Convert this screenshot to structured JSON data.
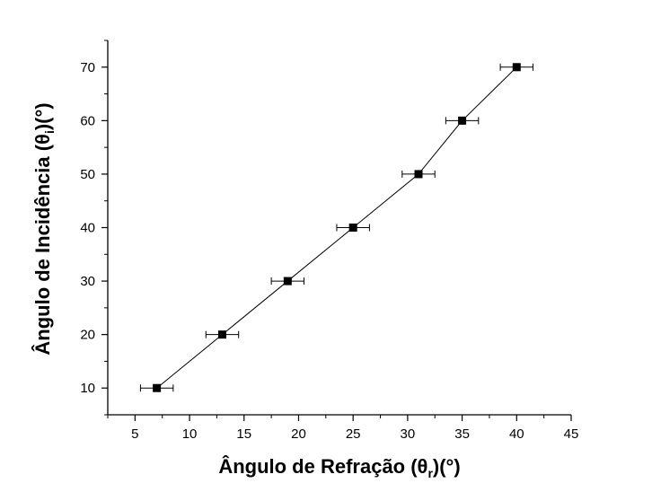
{
  "chart_data": {
    "type": "scatter",
    "xlabel": "Ângulo de Refração (θ",
    "xlabel_sub": "r",
    "xlabel_tail": ")(°)",
    "ylabel": "Ângulo de Incidência (θ",
    "ylabel_sub": "i",
    "ylabel_tail": ")(°)",
    "xlim": [
      2.5,
      45
    ],
    "ylim": [
      5,
      75
    ],
    "x_ticks": [
      5,
      10,
      15,
      20,
      25,
      30,
      35,
      40,
      45
    ],
    "y_ticks": [
      10,
      20,
      30,
      40,
      50,
      60,
      70
    ],
    "grid": false,
    "legend": "none",
    "line": true,
    "series": [
      {
        "x": [
          7,
          13,
          19,
          25,
          31,
          35,
          40
        ],
        "y": [
          10,
          20,
          30,
          40,
          50,
          60,
          70
        ],
        "x_error": [
          1.5,
          1.5,
          1.5,
          1.5,
          1.5,
          1.5,
          1.5
        ]
      }
    ],
    "colors": {
      "marker": "#000000",
      "line": "#000000",
      "axis": "#000000"
    }
  }
}
